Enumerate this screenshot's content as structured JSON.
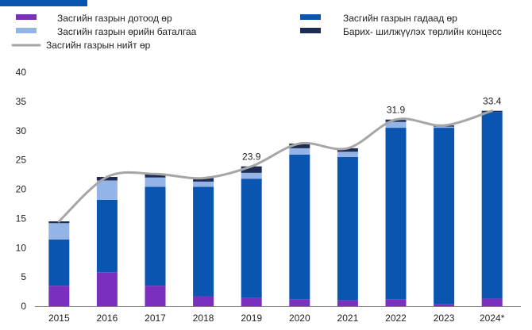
{
  "chart_data": {
    "type": "bar",
    "stacked": true,
    "categories": [
      "2015",
      "2016",
      "2017",
      "2018",
      "2019",
      "2020",
      "2021",
      "2022",
      "2023",
      "2024*"
    ],
    "ylim": [
      0,
      40
    ],
    "yticks": [
      0,
      5,
      10,
      15,
      20,
      25,
      30,
      35,
      40
    ],
    "grid": false,
    "legend_position": "top",
    "series": [
      {
        "name": "Засгийн газрын дотоод өр",
        "color": "#7b2fbe",
        "values": [
          3.5,
          5.8,
          3.5,
          1.7,
          1.4,
          1.2,
          1.0,
          1.2,
          0.3,
          1.3
        ]
      },
      {
        "name": "Засгийн газрын гадаад өр",
        "color": "#0a55b0",
        "values": [
          7.9,
          12.4,
          16.9,
          18.7,
          20.4,
          24.7,
          24.5,
          29.3,
          30.2,
          31.9
        ]
      },
      {
        "name": "Засгийн газрын өрийн баталгаа",
        "color": "#94b3e6",
        "values": [
          2.8,
          3.3,
          1.6,
          0.9,
          1.0,
          1.1,
          0.9,
          1.0,
          0.2,
          0.0
        ]
      },
      {
        "name": "Барих- шилжүүлэх төрлийн концесс",
        "color": "#1c2c56",
        "values": [
          0.3,
          0.6,
          0.6,
          0.6,
          1.1,
          0.8,
          0.6,
          0.4,
          0.2,
          0.2
        ]
      }
    ],
    "line": {
      "name": "Засгийн газрын нийт өр",
      "color": "#a6a6a6",
      "values": [
        14.5,
        22.1,
        22.6,
        21.9,
        23.9,
        27.8,
        27.0,
        31.9,
        30.9,
        33.4
      ]
    },
    "data_labels": [
      {
        "category": "2019",
        "value": 23.9,
        "text": "23.9"
      },
      {
        "category": "2022",
        "value": 31.9,
        "text": "31.9"
      },
      {
        "category": "2024*",
        "value": 33.4,
        "text": "33.4"
      }
    ]
  },
  "colors": {
    "header_accent": "#0a55b0",
    "axis": "#808080"
  }
}
